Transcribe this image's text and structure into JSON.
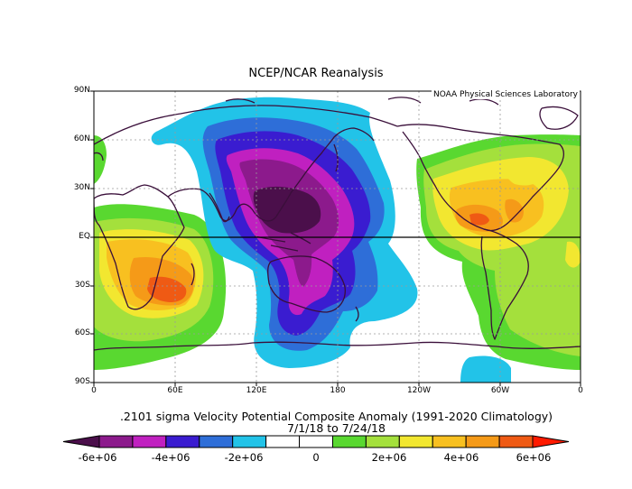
{
  "header": {
    "title": "NCEP/NCAR Reanalysis",
    "credit": "NOAA Physical Sciences Laboratory"
  },
  "map": {
    "lat_labels": [
      "90N",
      "60N",
      "30N",
      "EQ",
      "30S",
      "60S",
      "90S"
    ],
    "lon_labels": [
      "0",
      "60E",
      "120E",
      "180",
      "120W",
      "60W",
      "0"
    ]
  },
  "caption": {
    "line1": ".2101 sigma Velocity Potential  Composite Anomaly (1991-2020 Climatology)",
    "line2": "7/1/18   to 7/24/18"
  },
  "colorbar": {
    "colors": [
      "#4b0f4b",
      "#8c1a8c",
      "#c020c0",
      "#3a1cd0",
      "#2e6ed8",
      "#22c3e8",
      "#ffffff",
      "#ffffff",
      "#59d830",
      "#a4e03c",
      "#f2e730",
      "#f8c020",
      "#f59a18",
      "#ef5a14",
      "#ff1a00"
    ],
    "labels": [
      "-6e+06",
      "-4e+06",
      "-2e+06",
      "0",
      "2e+06",
      "4e+06",
      "6e+06"
    ]
  }
}
